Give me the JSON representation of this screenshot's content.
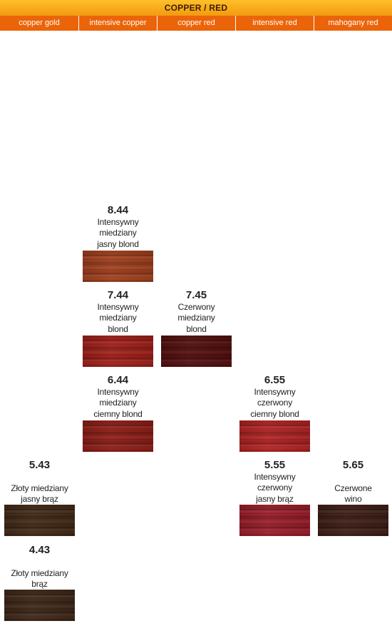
{
  "header": {
    "title": "COPPER / RED",
    "columns": [
      "copper gold",
      "intensive copper",
      "copper red",
      "intensive red",
      "mahogany red"
    ]
  },
  "shades": [
    {
      "code": "8.44",
      "desc": "Intensywny miedziany jasny blond",
      "color": "#a23c18"
    },
    {
      "code": "7.44",
      "desc": "Intensywny miedziany blond",
      "color": "#a11a14"
    },
    {
      "code": "7.45",
      "desc": "Czerwony miedziany blond",
      "color": "#500808"
    },
    {
      "code": "6.44",
      "desc": "Intensywny miedziany ciemny blond",
      "color": "#8e1812"
    },
    {
      "code": "6.55",
      "desc": "Intensywny czerwony ciemny blond",
      "color": "#b21e1e"
    },
    {
      "code": "5.43",
      "desc": "Złoty miedziany jasny brąz",
      "color": "#3e2410"
    },
    {
      "code": "5.55",
      "desc": "Intensywny czerwony jasny brąz",
      "color": "#9a1824"
    },
    {
      "code": "5.65",
      "desc": "Czerwone wino",
      "color": "#3a1810"
    },
    {
      "code": "4.43",
      "desc": "Złoty miedziany brąz",
      "color": "#3a2212"
    }
  ]
}
